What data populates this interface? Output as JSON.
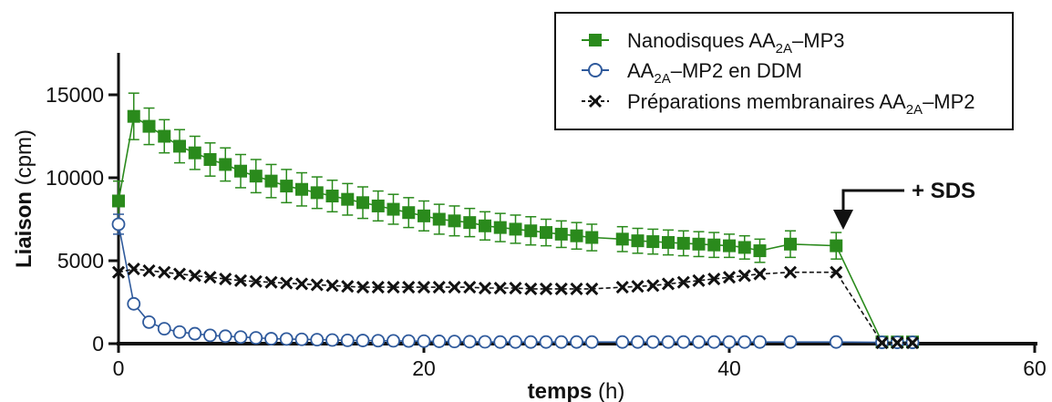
{
  "chart_data": {
    "type": "line",
    "xlabel_bold": "temps",
    "xlabel_unit": " (h)",
    "ylabel_bold": "Liaison",
    "ylabel_unit": " (cpm)",
    "xlim": [
      0,
      60
    ],
    "ylim": [
      0,
      17000
    ],
    "xticks": [
      0,
      20,
      40,
      60
    ],
    "yticks": [
      0,
      5000,
      10000,
      15000
    ],
    "legend_position": "top-right",
    "annotation": {
      "text": "+ SDS",
      "x": 47.5,
      "y": 6600
    },
    "series": [
      {
        "name_main": "Nanodisques AA",
        "name_sub": "2A",
        "name_tail": "–MP3",
        "color": "#2a8a1c",
        "marker": "square",
        "x": [
          0,
          1,
          2,
          3,
          4,
          5,
          6,
          7,
          8,
          9,
          10,
          11,
          12,
          13,
          14,
          15,
          16,
          17,
          18,
          19,
          20,
          21,
          22,
          23,
          24,
          25,
          26,
          27,
          28,
          29,
          30,
          31,
          33,
          34,
          35,
          36,
          37,
          38,
          39,
          40,
          41,
          42,
          44,
          47,
          50,
          51,
          52
        ],
        "y": [
          8600,
          13700,
          13100,
          12500,
          11900,
          11500,
          11100,
          10800,
          10400,
          10100,
          9800,
          9500,
          9300,
          9100,
          8900,
          8700,
          8500,
          8300,
          8100,
          7900,
          7700,
          7500,
          7400,
          7300,
          7100,
          7000,
          6900,
          6800,
          6700,
          6600,
          6500,
          6400,
          6300,
          6200,
          6150,
          6100,
          6050,
          6000,
          5950,
          5900,
          5800,
          5600,
          6000,
          5900,
          100,
          100,
          100
        ],
        "err": [
          1200,
          1400,
          1100,
          1000,
          1000,
          1000,
          1000,
          1000,
          1000,
          1000,
          1000,
          1000,
          1000,
          950,
          950,
          950,
          950,
          900,
          900,
          900,
          900,
          900,
          900,
          850,
          850,
          850,
          850,
          850,
          800,
          800,
          800,
          800,
          750,
          750,
          750,
          750,
          750,
          750,
          750,
          700,
          700,
          700,
          800,
          800,
          100,
          100,
          100
        ]
      },
      {
        "name_main": "AA",
        "name_sub": "2A",
        "name_tail": "–MP2 en DDM",
        "color": "#2f5a9c",
        "marker": "circle",
        "x": [
          0,
          1,
          2,
          3,
          4,
          5,
          6,
          7,
          8,
          9,
          10,
          11,
          12,
          13,
          14,
          15,
          16,
          17,
          18,
          19,
          20,
          21,
          22,
          23,
          24,
          25,
          26,
          27,
          28,
          29,
          30,
          31,
          33,
          34,
          35,
          36,
          37,
          38,
          39,
          40,
          41,
          42,
          44,
          47,
          50,
          51,
          52
        ],
        "y": [
          7200,
          2400,
          1300,
          900,
          700,
          600,
          500,
          450,
          400,
          350,
          300,
          280,
          260,
          240,
          220,
          200,
          190,
          180,
          170,
          160,
          150,
          140,
          130,
          120,
          110,
          100,
          100,
          100,
          100,
          100,
          100,
          100,
          100,
          100,
          100,
          100,
          100,
          100,
          100,
          100,
          100,
          100,
          100,
          100,
          80,
          80,
          80
        ],
        "err": [
          600,
          100,
          80,
          0,
          0,
          0,
          0,
          0,
          0,
          0,
          0,
          0,
          0,
          0,
          0,
          0,
          0,
          0,
          0,
          0,
          0,
          0,
          0,
          0,
          0,
          0,
          0,
          0,
          0,
          0,
          0,
          0,
          0,
          0,
          0,
          0,
          0,
          0,
          0,
          0,
          0,
          0,
          0,
          0,
          0,
          0,
          0
        ]
      },
      {
        "name_main": "Préparations membranaires AA",
        "name_sub": "2A",
        "name_tail": "–MP2",
        "color": "#111111",
        "marker": "cross",
        "dashed": true,
        "x": [
          0,
          1,
          2,
          3,
          4,
          5,
          6,
          7,
          8,
          9,
          10,
          11,
          12,
          13,
          14,
          15,
          16,
          17,
          18,
          19,
          20,
          21,
          22,
          23,
          24,
          25,
          26,
          27,
          28,
          29,
          30,
          31,
          33,
          34,
          35,
          36,
          37,
          38,
          39,
          40,
          41,
          42,
          44,
          47,
          50,
          51,
          52
        ],
        "y": [
          4300,
          4500,
          4400,
          4300,
          4200,
          4100,
          4000,
          3900,
          3800,
          3750,
          3700,
          3650,
          3600,
          3550,
          3500,
          3450,
          3400,
          3400,
          3400,
          3400,
          3400,
          3400,
          3400,
          3400,
          3350,
          3350,
          3350,
          3300,
          3300,
          3300,
          3300,
          3300,
          3400,
          3450,
          3500,
          3600,
          3700,
          3800,
          3900,
          4000,
          4100,
          4200,
          4300,
          4300,
          50,
          50,
          50
        ]
      }
    ]
  }
}
